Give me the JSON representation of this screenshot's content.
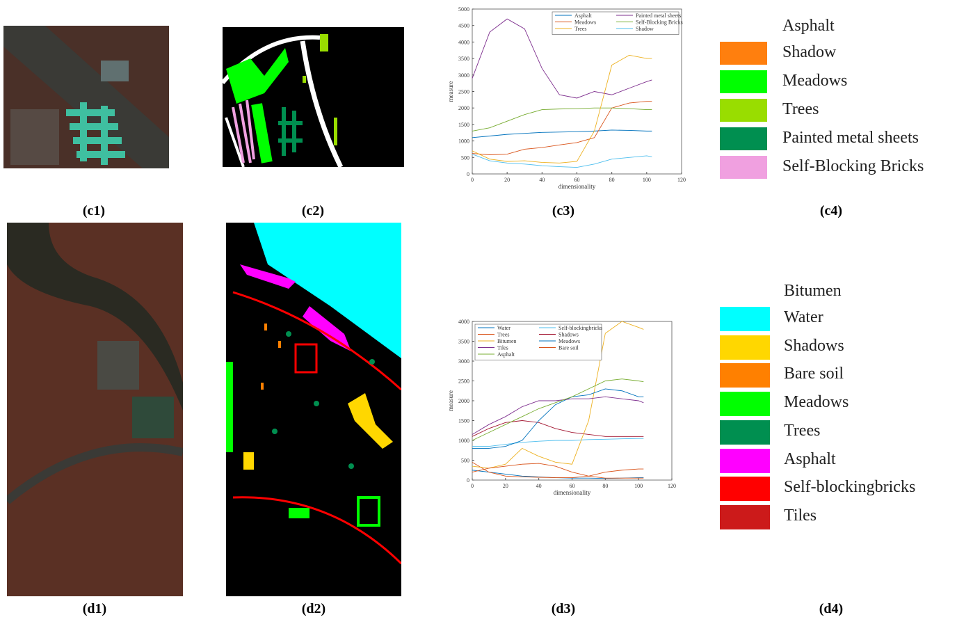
{
  "chart_data": [
    {
      "type": "line",
      "xlabel": "dimensionality",
      "ylabel": "measure",
      "x": [
        0,
        10,
        20,
        30,
        40,
        50,
        60,
        70,
        80,
        90,
        100,
        103
      ],
      "xlim": [
        0,
        120
      ],
      "xticks": [
        0,
        20,
        40,
        60,
        80,
        100,
        120
      ],
      "ylim": [
        0,
        5000
      ],
      "yticks": [
        0,
        500,
        1000,
        1500,
        2000,
        2500,
        3000,
        3500,
        4000,
        4500,
        5000
      ],
      "legend": "upper right",
      "series": [
        {
          "name": "Asphalt",
          "color": "#0072bd",
          "values": [
            1100,
            1150,
            1200,
            1230,
            1260,
            1270,
            1280,
            1300,
            1330,
            1320,
            1300,
            1300
          ]
        },
        {
          "name": "Painted metal sheets",
          "color": "#7e2f8e",
          "values": [
            2900,
            4300,
            4700,
            4400,
            3200,
            2400,
            2300,
            2500,
            2400,
            2600,
            2800,
            2850
          ]
        },
        {
          "name": "Meadows",
          "color": "#d95319",
          "values": [
            620,
            580,
            600,
            750,
            800,
            880,
            950,
            1100,
            2000,
            2150,
            2200,
            2200
          ]
        },
        {
          "name": "Self-Blocking Bricks",
          "color": "#77ac30",
          "values": [
            1300,
            1400,
            1600,
            1800,
            1950,
            1970,
            1980,
            2000,
            2000,
            1980,
            1950,
            1950
          ]
        },
        {
          "name": "Trees",
          "color": "#edb120",
          "values": [
            700,
            450,
            380,
            400,
            350,
            330,
            380,
            1300,
            3300,
            3600,
            3500,
            3500
          ]
        },
        {
          "name": "Shadow",
          "color": "#4dbeee",
          "values": [
            600,
            400,
            330,
            300,
            250,
            220,
            200,
            300,
            450,
            500,
            550,
            520
          ]
        }
      ]
    },
    {
      "type": "line",
      "xlabel": "dimensionality",
      "ylabel": "measure",
      "x": [
        0,
        10,
        20,
        30,
        40,
        50,
        60,
        70,
        80,
        90,
        100,
        103
      ],
      "xlim": [
        0,
        120
      ],
      "xticks": [
        0,
        20,
        40,
        60,
        80,
        100,
        120
      ],
      "ylim": [
        0,
        4000
      ],
      "yticks": [
        0,
        500,
        1000,
        1500,
        2000,
        2500,
        3000,
        3500,
        4000
      ],
      "legend": "upper left",
      "series": [
        {
          "name": "Water",
          "color": "#0072bd",
          "values": [
            250,
            200,
            150,
            100,
            80,
            60,
            50,
            50,
            40,
            50,
            60,
            60
          ]
        },
        {
          "name": "Self-blockingbricks",
          "color": "#4dbeee",
          "values": [
            850,
            850,
            900,
            950,
            980,
            1000,
            1000,
            1020,
            1030,
            1040,
            1050,
            1050
          ]
        },
        {
          "name": "Trees",
          "color": "#d95319",
          "values": [
            450,
            200,
            100,
            80,
            70,
            60,
            60,
            100,
            200,
            250,
            280,
            280
          ]
        },
        {
          "name": "Shadows",
          "color": "#a2142f",
          "values": [
            1100,
            1300,
            1450,
            1500,
            1450,
            1300,
            1200,
            1150,
            1100,
            1100,
            1100,
            1100
          ]
        },
        {
          "name": "Bitumen",
          "color": "#edb120",
          "values": [
            350,
            300,
            400,
            800,
            600,
            450,
            400,
            1500,
            3700,
            4000,
            3850,
            3800
          ]
        },
        {
          "name": "Meadows",
          "color": "#0072bd",
          "values": [
            800,
            800,
            850,
            1000,
            1500,
            1900,
            2100,
            2150,
            2300,
            2250,
            2100,
            2100
          ]
        },
        {
          "name": "Tiles",
          "color": "#7e2f8e",
          "values": [
            1150,
            1400,
            1600,
            1850,
            2000,
            2000,
            2050,
            2050,
            2100,
            2050,
            2000,
            1950
          ]
        },
        {
          "name": "Bare soil",
          "color": "#d95319",
          "values": [
            200,
            300,
            350,
            400,
            420,
            350,
            200,
            100,
            50,
            50,
            50,
            50
          ]
        },
        {
          "name": "Asphalt",
          "color": "#77ac30",
          "values": [
            1000,
            1200,
            1400,
            1600,
            1800,
            1950,
            2100,
            2300,
            2500,
            2550,
            2500,
            2480
          ]
        }
      ]
    }
  ],
  "legends": [
    {
      "heading": "Asphalt",
      "items": [
        {
          "label": "Shadow",
          "color": "#ff7f0e"
        },
        {
          "label": "Meadows",
          "color": "#00ff00"
        },
        {
          "label": "Trees",
          "color": "#99dd00"
        },
        {
          "label": "Painted metal sheets",
          "color": "#008f50"
        },
        {
          "label": "Self-Blocking Bricks",
          "color": "#f0a0e0"
        }
      ]
    },
    {
      "heading": "Bitumen",
      "items": [
        {
          "label": "Water",
          "color": "#00ffff"
        },
        {
          "label": "Shadows",
          "color": "#ffd700"
        },
        {
          "label": "Bare soil",
          "color": "#ff8000"
        },
        {
          "label": "Meadows",
          "color": "#00ff00"
        },
        {
          "label": "Trees",
          "color": "#008f50"
        },
        {
          "label": "Asphalt",
          "color": "#ff00ff"
        },
        {
          "label": "Self-blockingbricks",
          "color": "#ff0000"
        },
        {
          "label": "Tiles",
          "color": "#cc1a1a"
        }
      ]
    }
  ],
  "captions": [
    "(c1)",
    "(c2)",
    "(c3)",
    "(c4)",
    "(d1)",
    "(d2)",
    "(d3)",
    "(d4)"
  ]
}
